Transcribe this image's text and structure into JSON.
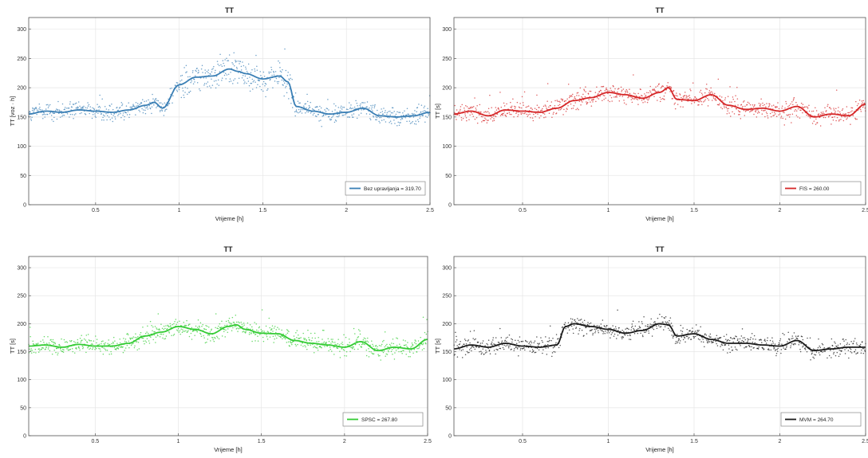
{
  "chart_data": [
    {
      "type": "scatter",
      "title": "TT",
      "xlabel": "Vrijeme [h]",
      "ylabel": "TT [voz · h]",
      "xlim": [
        0.1,
        2.5
      ],
      "ylim": [
        0,
        320
      ],
      "xticks": [
        "0.5",
        "1",
        "1.5",
        "2",
        "2.5"
      ],
      "yticks": [
        "0",
        "50",
        "100",
        "150",
        "200",
        "250",
        "300"
      ],
      "grid": true,
      "legend_position": "bottom-right",
      "color": "#3a7fb5",
      "series": [
        {
          "name": "Bez upravljanja = 319.70",
          "x": [
            0.1,
            0.2,
            0.3,
            0.4,
            0.5,
            0.6,
            0.7,
            0.8,
            0.85,
            0.9,
            1.0,
            1.1,
            1.2,
            1.3,
            1.35,
            1.4,
            1.5,
            1.6,
            1.65,
            1.7,
            1.8,
            1.9,
            2.0,
            2.1,
            2.2,
            2.3,
            2.4,
            2.5
          ],
          "y": [
            155,
            160,
            158,
            162,
            160,
            158,
            162,
            170,
            175,
            165,
            205,
            218,
            220,
            232,
            228,
            224,
            215,
            220,
            210,
            168,
            160,
            155,
            158,
            165,
            152,
            150,
            152,
            158
          ]
        }
      ]
    },
    {
      "type": "scatter",
      "title": "TT",
      "xlabel": "Vrijeme [h]",
      "ylabel": "TT [s]",
      "xlim": [
        0.1,
        2.5
      ],
      "ylim": [
        0,
        320
      ],
      "xticks": [
        "0.5",
        "1",
        "1.5",
        "2",
        "2.5"
      ],
      "yticks": [
        "0",
        "50",
        "100",
        "150",
        "200",
        "250",
        "300"
      ],
      "grid": true,
      "legend_position": "bottom-right",
      "color": "#d62728",
      "series": [
        {
          "name": "FIS = 260.00",
          "x": [
            0.1,
            0.2,
            0.3,
            0.4,
            0.5,
            0.6,
            0.7,
            0.8,
            0.9,
            1.0,
            1.1,
            1.2,
            1.3,
            1.35,
            1.4,
            1.5,
            1.6,
            1.7,
            1.8,
            1.9,
            2.0,
            2.1,
            2.2,
            2.3,
            2.4,
            2.5
          ],
          "y": [
            155,
            160,
            152,
            162,
            160,
            158,
            165,
            178,
            183,
            192,
            188,
            182,
            192,
            200,
            180,
            178,
            188,
            170,
            163,
            165,
            160,
            168,
            150,
            155,
            152,
            172
          ]
        }
      ]
    },
    {
      "type": "scatter",
      "title": "TT",
      "xlabel": "Vrijeme [h]",
      "ylabel": "TT [s]",
      "xlim": [
        0.1,
        2.5
      ],
      "ylim": [
        0,
        320
      ],
      "xticks": [
        "0.5",
        "1",
        "1.5",
        "2",
        "2.5"
      ],
      "yticks": [
        "0",
        "50",
        "100",
        "150",
        "200",
        "250",
        "300"
      ],
      "grid": true,
      "legend_position": "bottom-right",
      "color": "#33cc33",
      "series": [
        {
          "name": "SPSC = 267.80",
          "x": [
            0.1,
            0.2,
            0.3,
            0.4,
            0.5,
            0.6,
            0.7,
            0.8,
            0.9,
            1.0,
            1.1,
            1.2,
            1.3,
            1.35,
            1.4,
            1.5,
            1.6,
            1.7,
            1.8,
            1.9,
            2.0,
            2.1,
            2.2,
            2.3,
            2.4,
            2.5
          ],
          "y": [
            160,
            162,
            158,
            163,
            160,
            160,
            165,
            178,
            185,
            195,
            190,
            182,
            195,
            198,
            190,
            183,
            182,
            170,
            165,
            162,
            158,
            168,
            152,
            158,
            155,
            172
          ]
        }
      ]
    },
    {
      "type": "scatter",
      "title": "TT",
      "xlabel": "Vrijeme [h]",
      "ylabel": "TT [s]",
      "xlim": [
        0.1,
        2.5
      ],
      "ylim": [
        0,
        320
      ],
      "xticks": [
        "0.5",
        "1",
        "1.5",
        "2",
        "2.5"
      ],
      "yticks": [
        "0",
        "50",
        "100",
        "150",
        "200",
        "250",
        "300"
      ],
      "grid": true,
      "legend_position": "bottom-right",
      "color": "#1a1a1a",
      "series": [
        {
          "name": "MVM = 264.70",
          "x": [
            0.1,
            0.2,
            0.3,
            0.4,
            0.5,
            0.6,
            0.7,
            0.75,
            0.8,
            0.9,
            1.0,
            1.1,
            1.2,
            1.3,
            1.35,
            1.4,
            1.5,
            1.6,
            1.7,
            1.8,
            1.9,
            2.0,
            2.1,
            2.2,
            2.3,
            2.4,
            2.5
          ],
          "y": [
            155,
            162,
            158,
            165,
            160,
            158,
            162,
            195,
            200,
            195,
            190,
            183,
            188,
            200,
            198,
            178,
            182,
            172,
            165,
            165,
            162,
            160,
            170,
            152,
            155,
            158,
            158
          ]
        }
      ]
    }
  ]
}
